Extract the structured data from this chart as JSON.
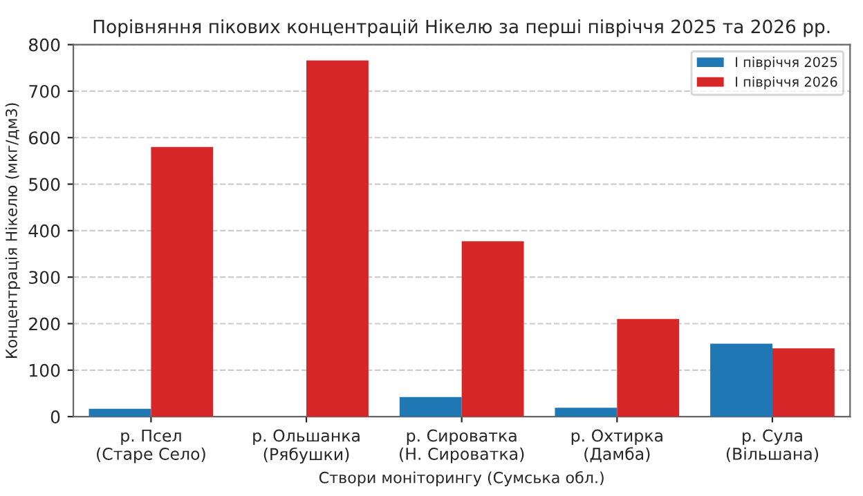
{
  "chart_data": {
    "type": "bar",
    "title": "Порівняння пікових концентрацій Нікелю за перші півріччя 2025 та 2026 рр.",
    "xlabel": "Створи моніторингу (Сумська обл.)",
    "ylabel": "Концентрація Нікелю (мкг/дм3)",
    "categories": [
      "р. Псел\n(Старе Село)",
      "р. Ольшанка\n(Рябушки)",
      "р. Сироватка\n(Н. Сироватка)",
      "р. Охтирка\n(Дамба)",
      "р. Сула\n(Вільшана)"
    ],
    "series": [
      {
        "name": "І півріччя 2025",
        "color": "#1f77b4",
        "values": [
          17,
          null,
          42,
          19,
          157
        ]
      },
      {
        "name": "І півріччя 2026",
        "color": "#d62728",
        "values": [
          580,
          766,
          377,
          210,
          147
        ]
      }
    ],
    "ylim": [
      0,
      800
    ],
    "yticks": [
      0,
      100,
      200,
      300,
      400,
      500,
      600,
      700,
      800
    ],
    "grid": "y",
    "legend": "top right"
  }
}
